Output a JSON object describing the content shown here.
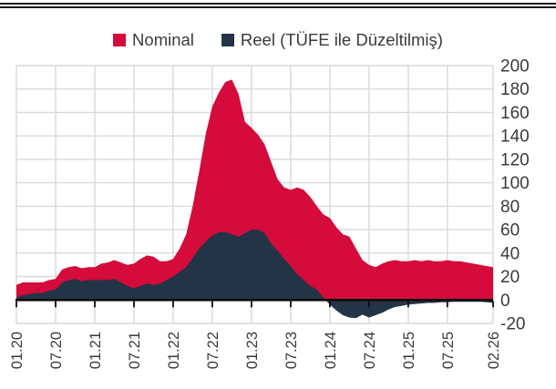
{
  "legend": {
    "items": [
      {
        "label": "Nominal",
        "color": "#d40b3b"
      },
      {
        "label": "Reel (TÜFE ile Düzeltilmiş)",
        "color": "#243447"
      }
    ]
  },
  "chart_data": {
    "type": "area",
    "title": "",
    "xlabel": "",
    "ylabel": "",
    "x_frequency": "monthly",
    "x_start": "01.20",
    "x_end": "02.26",
    "ylim": [
      -20,
      200
    ],
    "grid": true,
    "legend_position": "top",
    "grid_color": "#d9d9d9",
    "axis_color": "#0d0d0d",
    "text_color": "#3a3a3a",
    "y_ticks": [
      200,
      180,
      160,
      140,
      120,
      100,
      80,
      60,
      40,
      20,
      0,
      -20
    ],
    "x_ticks": [
      {
        "label": "01.20",
        "month": 0
      },
      {
        "label": "07.20",
        "month": 6
      },
      {
        "label": "01.21",
        "month": 12
      },
      {
        "label": "07.21",
        "month": 18
      },
      {
        "label": "01.22",
        "month": 24
      },
      {
        "label": "07.22",
        "month": 30
      },
      {
        "label": "01.23",
        "month": 36
      },
      {
        "label": "07.23",
        "month": 42
      },
      {
        "label": "01.24",
        "month": 48
      },
      {
        "label": "07.24",
        "month": 54
      },
      {
        "label": "01.25",
        "month": 60
      },
      {
        "label": "07.25",
        "month": 66
      },
      {
        "label": "02.26",
        "month": 73
      }
    ],
    "series": [
      {
        "name": "Nominal",
        "color": "#d40b3b",
        "values": [
          13,
          15,
          15,
          15,
          15,
          17,
          18,
          26,
          28,
          29,
          27,
          28,
          28,
          31,
          32,
          34,
          32,
          30,
          31,
          35,
          38,
          37,
          33,
          33,
          35,
          44,
          56,
          80,
          110,
          142,
          165,
          177,
          186,
          188,
          176,
          152,
          147,
          141,
          133,
          118,
          103,
          96,
          94,
          96,
          94,
          88,
          80,
          73,
          70,
          62,
          56,
          54,
          44,
          34,
          30,
          28,
          31,
          33,
          34,
          33,
          33,
          34,
          33,
          34,
          33,
          33,
          34,
          33,
          33,
          32,
          31,
          30,
          29,
          28
        ]
      },
      {
        "name": "Reel (TÜFE ile Düzeltilmiş)",
        "color": "#243447",
        "values": [
          2,
          4,
          5,
          6,
          6,
          8,
          9,
          15,
          17,
          18,
          16,
          17,
          17,
          17,
          17,
          18,
          15,
          12,
          10,
          12,
          14,
          13,
          14,
          17,
          20,
          24,
          28,
          36,
          44,
          50,
          55,
          58,
          58,
          56,
          54,
          57,
          60,
          60,
          57,
          48,
          42,
          35,
          29,
          22,
          17,
          12,
          9,
          2,
          -4,
          -9,
          -13,
          -15,
          -15.5,
          -12.5,
          -15,
          -13,
          -11,
          -8,
          -6,
          -5,
          -4,
          -3.5,
          -3,
          -2.5,
          -2.5,
          -2,
          -2,
          -1.5,
          -1.5,
          -1.5,
          -1.5,
          -1.5,
          -2,
          -2.5
        ]
      }
    ]
  }
}
